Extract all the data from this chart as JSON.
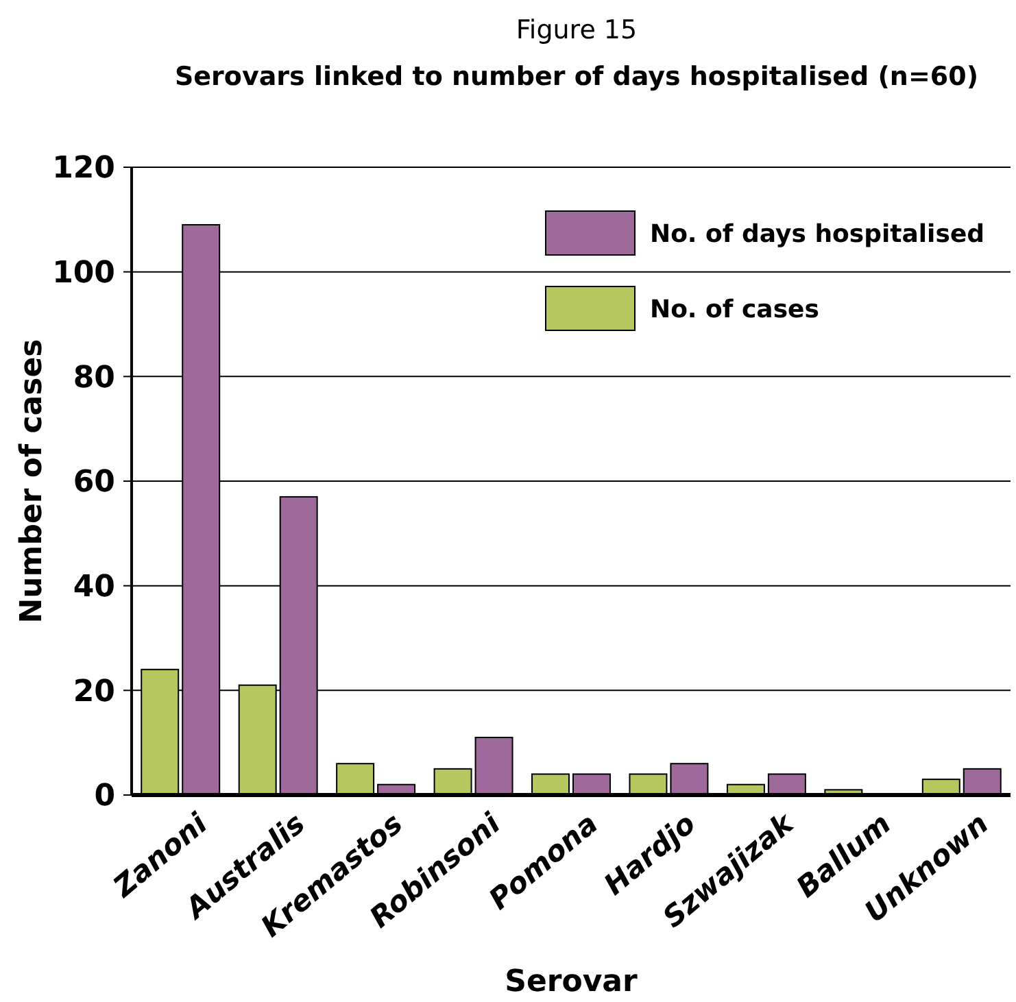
{
  "chart_data": {
    "type": "bar",
    "title": "Figure 15",
    "subtitle": "Serovars linked to number of days hospitalised (n=60)",
    "xlabel": "Serovar",
    "ylabel": "Number of cases",
    "categories": [
      "Zanoni",
      "Australis",
      "Kremastos",
      "Robinsoni",
      "Pomona",
      "Hardjo",
      "Szwajizak",
      "Ballum",
      "Unknown"
    ],
    "series": [
      {
        "name": "No. of cases",
        "color": "#b5c75e",
        "values": [
          24,
          21,
          6,
          5,
          4,
          4,
          2,
          1,
          3
        ]
      },
      {
        "name": "No. of days hospitalised",
        "color": "#9e6a9b",
        "values": [
          109,
          57,
          2,
          11,
          4,
          6,
          4,
          0,
          5
        ]
      }
    ],
    "ylim": [
      0,
      120
    ],
    "yticks": [
      0,
      20,
      40,
      60,
      80,
      100,
      120
    ],
    "grid": "y",
    "legend": "top right"
  }
}
